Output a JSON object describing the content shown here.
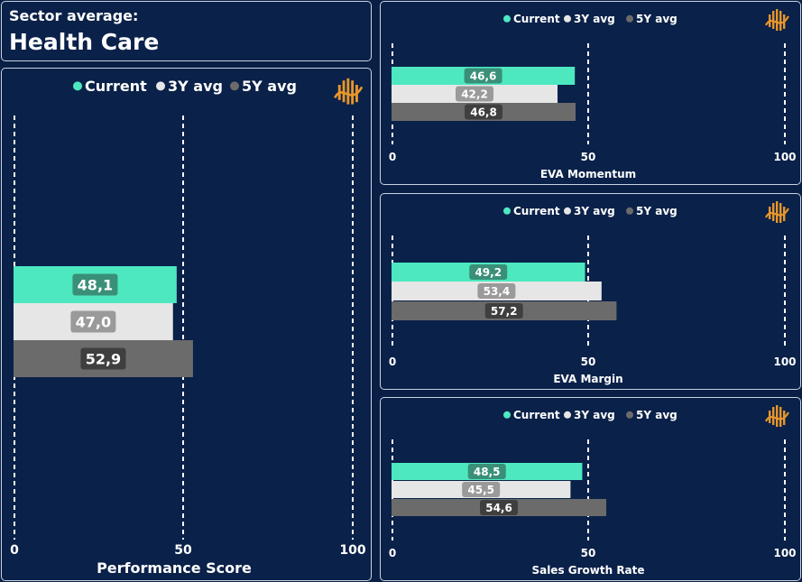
{
  "header": {
    "label": "Sector average:",
    "sector": "Health Care"
  },
  "colors": {
    "background": "#0a2149",
    "current": "#4de8c0",
    "avg3y": "#e6e6e6",
    "avg5y": "#6b6b6b",
    "label_current": "#3a8f78",
    "label_3y": "#9a9a9a",
    "label_5y": "#3f3f3f",
    "logo": "#e8962a"
  },
  "logo_icon": "dollar-wave-logo-icon",
  "chart_data": [
    {
      "id": "performance-score",
      "type": "bar",
      "orientation": "horizontal",
      "xlabel": "Performance Score",
      "xlim": [
        0,
        100
      ],
      "ticks": [
        "0",
        "50",
        "100"
      ],
      "grid": "dashed vertical at ticks",
      "legend_position": "top",
      "series": [
        {
          "name": "Current",
          "values": [
            48.1
          ],
          "label": "48,1"
        },
        {
          "name": "3Y avg",
          "values": [
            47.0
          ],
          "label": "47,0"
        },
        {
          "name": "5Y avg",
          "values": [
            52.9
          ],
          "label": "52,9"
        }
      ]
    },
    {
      "id": "eva-momentum",
      "type": "bar",
      "orientation": "horizontal",
      "xlabel": "EVA Momentum",
      "xlim": [
        0,
        100
      ],
      "ticks": [
        "0",
        "50",
        "100"
      ],
      "grid": "dashed vertical at ticks",
      "legend_position": "top",
      "series": [
        {
          "name": "Current",
          "values": [
            46.6
          ],
          "label": "46,6"
        },
        {
          "name": "3Y avg",
          "values": [
            42.2
          ],
          "label": "42,2"
        },
        {
          "name": "5Y avg",
          "values": [
            46.8
          ],
          "label": "46,8"
        }
      ]
    },
    {
      "id": "eva-margin",
      "type": "bar",
      "orientation": "horizontal",
      "xlabel": "EVA Margin",
      "xlim": [
        0,
        100
      ],
      "ticks": [
        "0",
        "50",
        "100"
      ],
      "grid": "dashed vertical at ticks",
      "legend_position": "top",
      "series": [
        {
          "name": "Current",
          "values": [
            49.2
          ],
          "label": "49,2"
        },
        {
          "name": "3Y avg",
          "values": [
            53.4
          ],
          "label": "53,4"
        },
        {
          "name": "5Y avg",
          "values": [
            57.2
          ],
          "label": "57,2"
        }
      ]
    },
    {
      "id": "sales-growth-rate",
      "type": "bar",
      "orientation": "horizontal",
      "xlabel": "Sales Growth Rate",
      "xlim": [
        0,
        100
      ],
      "ticks": [
        "0",
        "50",
        "100"
      ],
      "grid": "dashed vertical at ticks",
      "legend_position": "top",
      "series": [
        {
          "name": "Current",
          "values": [
            48.5
          ],
          "label": "48,5"
        },
        {
          "name": "3Y avg",
          "values": [
            45.5
          ],
          "label": "45,5"
        },
        {
          "name": "5Y avg",
          "values": [
            54.6
          ],
          "label": "54,6"
        }
      ]
    }
  ]
}
